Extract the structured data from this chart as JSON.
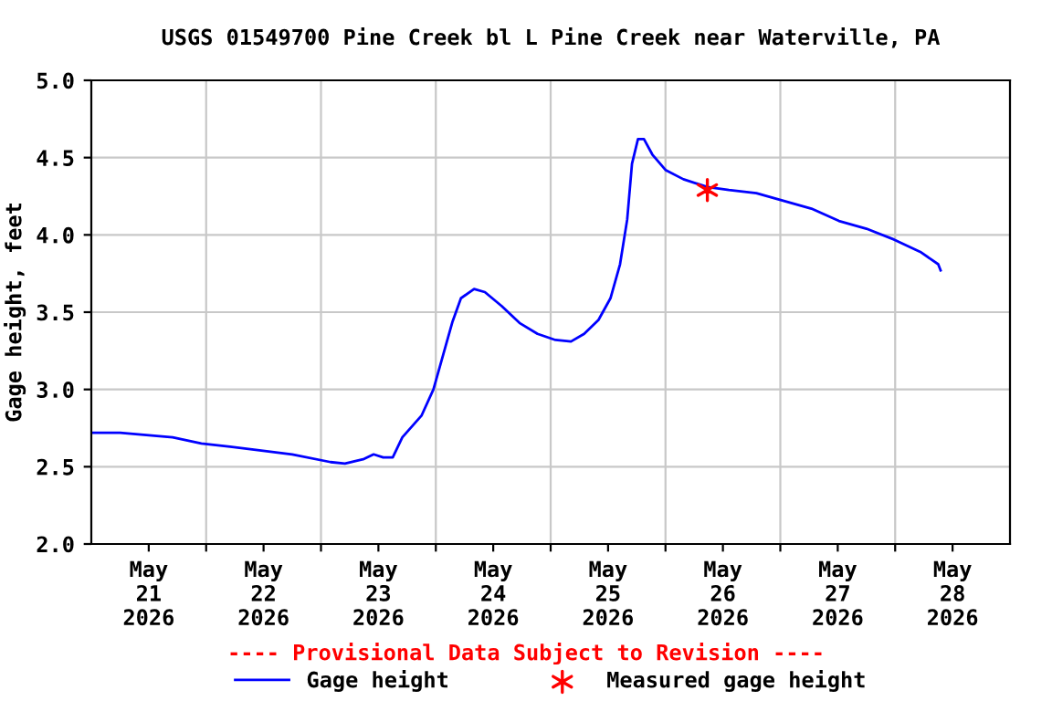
{
  "chart_data": {
    "type": "line",
    "title": "USGS 01549700 Pine Creek bl L Pine Creek near Waterville, PA",
    "ylabel": "Gage height, feet",
    "x": [
      "2026-05-21T00:00",
      "2026-05-21T06:00",
      "2026-05-21T17:00",
      "2026-05-21T23:00",
      "2026-05-22T05:00",
      "2026-05-22T10:00",
      "2026-05-22T18:00",
      "2026-05-23T02:00",
      "2026-05-23T05:00",
      "2026-05-23T09:00",
      "2026-05-23T11:00",
      "2026-05-23T13:00",
      "2026-05-23T15:00",
      "2026-05-23T17:00",
      "2026-05-23T21:00",
      "2026-05-23T23:30",
      "2026-05-24T01:30",
      "2026-05-24T03:30",
      "2026-05-24T05:15",
      "2026-05-24T08:00",
      "2026-05-24T10:15",
      "2026-05-24T13:45",
      "2026-05-24T17:30",
      "2026-05-24T21:15",
      "2026-05-25T01:00",
      "2026-05-25T04:15",
      "2026-05-25T07:00",
      "2026-05-25T10:00",
      "2026-05-25T12:30",
      "2026-05-25T14:30",
      "2026-05-25T16:00",
      "2026-05-25T17:00",
      "2026-05-25T18:15",
      "2026-05-25T19:30",
      "2026-05-25T21:15",
      "2026-05-26T00:00",
      "2026-05-26T03:45",
      "2026-05-26T08:45",
      "2026-05-26T13:15",
      "2026-05-26T19:00",
      "2026-05-27T00:45",
      "2026-05-27T06:30",
      "2026-05-27T12:15",
      "2026-05-27T18:00",
      "2026-05-27T23:45",
      "2026-05-28T05:15",
      "2026-05-28T09:00",
      "2026-05-28T09:30"
    ],
    "series": [
      {
        "name": "Gage height",
        "color": "#0000ff",
        "values": [
          2.72,
          2.72,
          2.69,
          2.65,
          2.63,
          2.61,
          2.58,
          2.53,
          2.52,
          2.55,
          2.58,
          2.56,
          2.56,
          2.69,
          2.83,
          3.0,
          3.22,
          3.44,
          3.59,
          3.65,
          3.63,
          3.54,
          3.43,
          3.36,
          3.32,
          3.31,
          3.36,
          3.45,
          3.59,
          3.81,
          4.1,
          4.46,
          4.62,
          4.62,
          4.52,
          4.42,
          4.36,
          4.31,
          4.29,
          4.27,
          4.22,
          4.17,
          4.09,
          4.04,
          3.97,
          3.89,
          3.81,
          3.77
        ]
      },
      {
        "name": "Measured gage height",
        "color": "#ff0000",
        "type": "scatter",
        "marker": "cross",
        "x": [
          "2026-05-26T08:45"
        ],
        "values": [
          4.29
        ]
      }
    ],
    "xlim": [
      "2026-05-21T00:00",
      "2026-05-29T00:00"
    ],
    "xticks": [
      {
        "value": "2026-05-21T12:00",
        "label": "May\n21\n2026"
      },
      {
        "value": "2026-05-22T12:00",
        "label": "May\n22\n2026"
      },
      {
        "value": "2026-05-23T12:00",
        "label": "May\n23\n2026"
      },
      {
        "value": "2026-05-24T12:00",
        "label": "May\n24\n2026"
      },
      {
        "value": "2026-05-25T12:00",
        "label": "May\n25\n2026"
      },
      {
        "value": "2026-05-26T12:00",
        "label": "May\n26\n2026"
      },
      {
        "value": "2026-05-27T12:00",
        "label": "May\n27\n2026"
      },
      {
        "value": "2026-05-28T12:00",
        "label": "May\n28\n2026"
      },
      {
        "value": "2026-05-22T00:00",
        "label": null
      },
      {
        "value": "2026-05-23T00:00",
        "label": null
      },
      {
        "value": "2026-05-24T00:00",
        "label": null
      },
      {
        "value": "2026-05-25T00:00",
        "label": null
      },
      {
        "value": "2026-05-26T00:00",
        "label": null
      },
      {
        "value": "2026-05-27T00:00",
        "label": null
      },
      {
        "value": "2026-05-28T00:00",
        "label": null
      }
    ],
    "ylim": [
      2.0,
      5.0
    ],
    "yticks": [
      {
        "value": 2.0,
        "label": "2.0"
      },
      {
        "value": 2.5,
        "label": "2.5"
      },
      {
        "value": 3.0,
        "label": "3.0"
      },
      {
        "value": 3.5,
        "label": "3.5"
      },
      {
        "value": 4.0,
        "label": "4.0"
      },
      {
        "value": 4.5,
        "label": "4.5"
      },
      {
        "value": 5.0,
        "label": "5.0"
      }
    ],
    "grid": true,
    "legend": "bottom",
    "line_style": "solid",
    "annotations": [
      "---- Provisional Data Subject to Revision ----"
    ]
  }
}
